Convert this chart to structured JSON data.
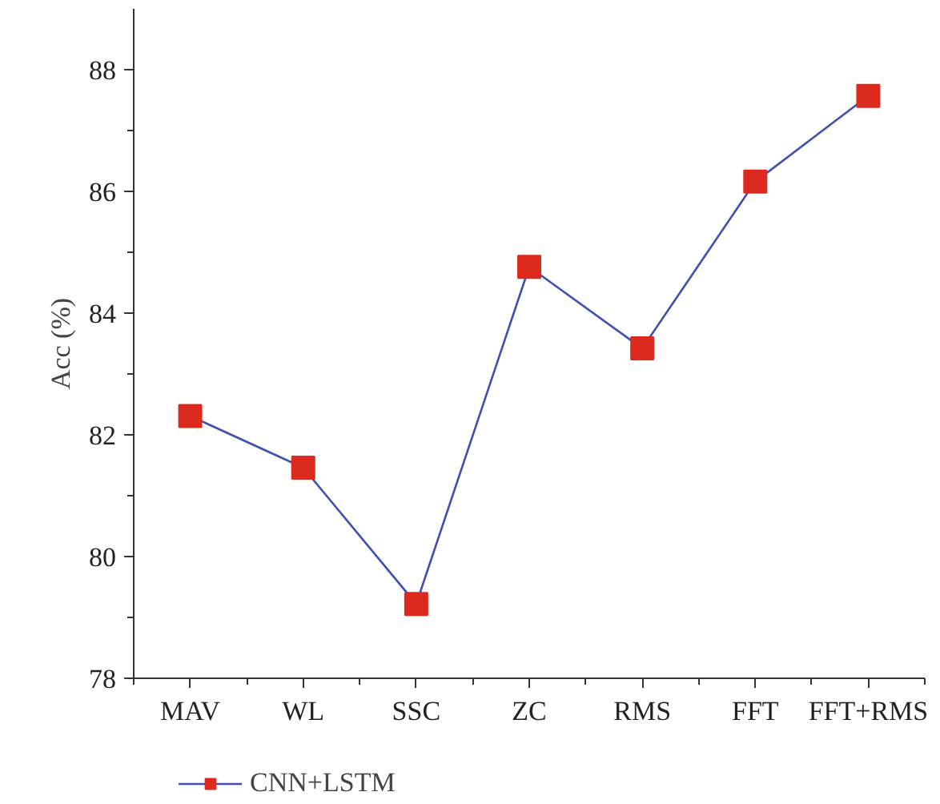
{
  "chart_data": {
    "type": "line",
    "ylabel": "Acc (%)",
    "categories": [
      "MAV",
      "WL",
      "SSC",
      "ZC",
      "RMS",
      "FFT",
      "FFT+RMS"
    ],
    "series": [
      {
        "name": "CNN+LSTM",
        "color": "#dd2a1e",
        "values": [
          82.31,
          81.46,
          79.22,
          84.76,
          83.42,
          86.16,
          87.57
        ]
      }
    ],
    "ylim": [
      78,
      89
    ],
    "yticks": [
      78,
      {
        "value": 79,
        "label": null
      },
      80,
      {
        "value": 81,
        "label": null
      },
      82,
      {
        "value": 83,
        "label": null
      },
      84,
      {
        "value": 85,
        "label": null
      },
      86,
      {
        "value": 87,
        "label": null
      },
      88
    ],
    "marker": "square",
    "line_style": "solid",
    "grid": false,
    "legend": "bottom left"
  }
}
